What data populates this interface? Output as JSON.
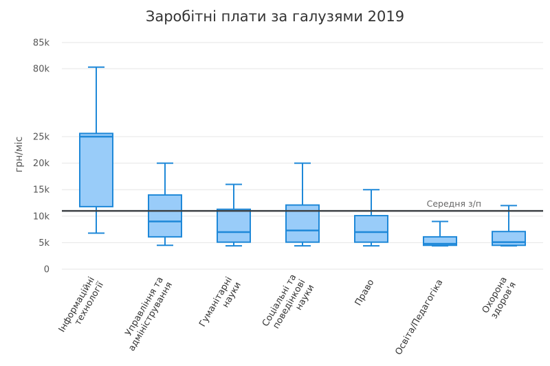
{
  "chart_data": {
    "type": "boxplot",
    "title": "Заробітні плати за галузями 2019",
    "ylabel": "грн/міс",
    "xlabel": "",
    "y_ticks": [
      {
        "value": 0,
        "label": "0"
      },
      {
        "value": 5000,
        "label": "5k"
      },
      {
        "value": 10000,
        "label": "10k"
      },
      {
        "value": 15000,
        "label": "15k"
      },
      {
        "value": 20000,
        "label": "20k"
      },
      {
        "value": 25000,
        "label": "25k"
      },
      {
        "value": 80000,
        "label": "80k"
      },
      {
        "value": 85000,
        "label": "85k"
      }
    ],
    "y_axis_break": {
      "from": 30000,
      "to": 75000
    },
    "grid": true,
    "colors": {
      "box_fill": "#99ccf9",
      "box_stroke": "#1e88d8",
      "reference_line": "#3c4044"
    },
    "reference_line": {
      "value": 11000,
      "label": "Середня з/п"
    },
    "categories": [
      {
        "label_lines": [
          "Інформаційні",
          "технології"
        ],
        "whisker_low": 6800,
        "q1": 11800,
        "median": 25000,
        "q3": 27600,
        "whisker_high": 80300
      },
      {
        "label_lines": [
          "Управління та",
          "адміністрування"
        ],
        "whisker_low": 4500,
        "q1": 6100,
        "median": 9000,
        "q3": 14000,
        "whisker_high": 20000
      },
      {
        "label_lines": [
          "Гуманітарні",
          "науки"
        ],
        "whisker_low": 4400,
        "q1": 5100,
        "median": 7000,
        "q3": 11300,
        "whisker_high": 16000
      },
      {
        "label_lines": [
          "Соціальні та",
          "поведінкові",
          "науки"
        ],
        "whisker_low": 4400,
        "q1": 5100,
        "median": 7300,
        "q3": 12100,
        "whisker_high": 20000
      },
      {
        "label_lines": [
          "Право"
        ],
        "whisker_low": 4400,
        "q1": 5100,
        "median": 7000,
        "q3": 10100,
        "whisker_high": 15000
      },
      {
        "label_lines": [
          "Освіта/Педагогіка"
        ],
        "whisker_low": 4400,
        "q1": 4500,
        "median": 4800,
        "q3": 6100,
        "whisker_high": 9000
      },
      {
        "label_lines": [
          "Охорона",
          "здоров'я"
        ],
        "whisker_low": 4400,
        "q1": 4500,
        "median": 5100,
        "q3": 7100,
        "whisker_high": 12000
      }
    ]
  }
}
